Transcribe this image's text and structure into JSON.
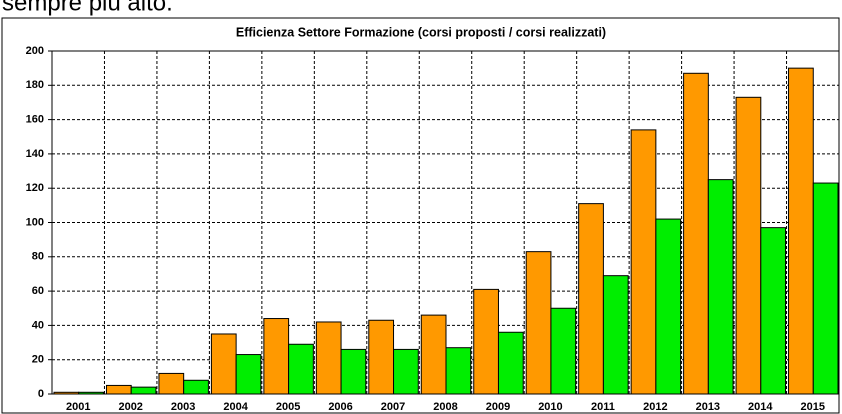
{
  "caption": "sempre più alto.",
  "chart_data": {
    "type": "bar",
    "title": "Efficienza Settore Formazione (corsi proposti / corsi realizzati)",
    "categories": [
      "2001",
      "2002",
      "2003",
      "2004",
      "2005",
      "2006",
      "2007",
      "2008",
      "2009",
      "2010",
      "2011",
      "2012",
      "2013",
      "2014",
      "2015"
    ],
    "series": [
      {
        "color": "#ff9900",
        "values": [
          1,
          5,
          12,
          35,
          44,
          42,
          43,
          46,
          61,
          83,
          111,
          154,
          187,
          173,
          190
        ]
      },
      {
        "color": "#00ee00",
        "values": [
          1,
          4,
          8,
          23,
          29,
          26,
          26,
          27,
          36,
          50,
          69,
          102,
          125,
          97,
          123
        ]
      }
    ],
    "ylim": [
      0,
      200
    ],
    "yticks": [
      0,
      20,
      40,
      60,
      80,
      100,
      120,
      140,
      160,
      180,
      200
    ],
    "grid": true
  }
}
